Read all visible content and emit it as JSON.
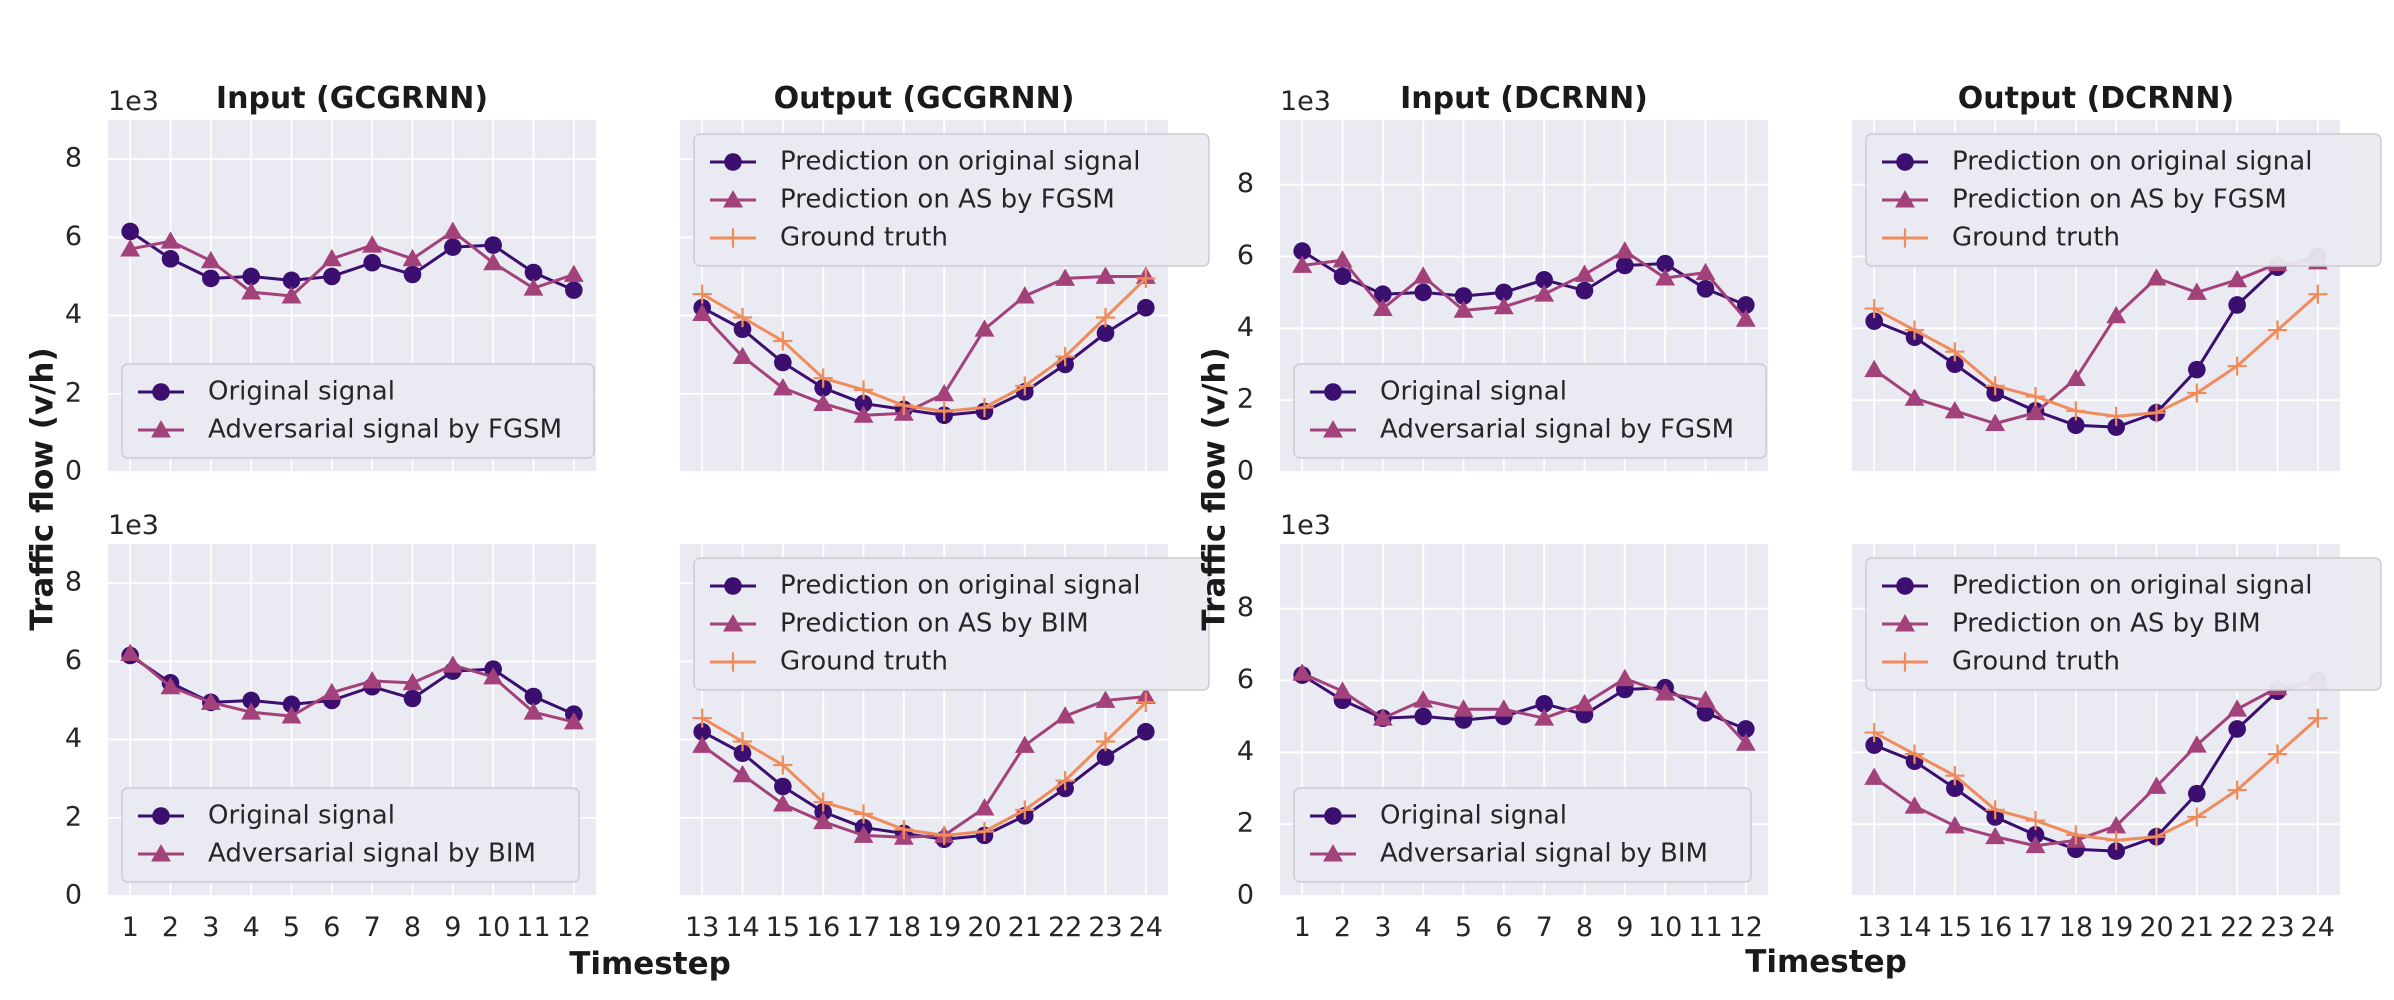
{
  "figure": {
    "ylabel_left": "Traffic flow (v/h)",
    "ylabel_right": "Traffic flow (v/h)",
    "xlabel_left": "Timestep",
    "xlabel_right": "Timestep",
    "colors": {
      "original": "#3b0f70",
      "adversarial": "#a3417a",
      "truth": "#f08c5c",
      "panel_bg": "#eaeaf2",
      "grid": "#ffffff"
    }
  },
  "chart_data": [
    {
      "type": "line",
      "title": "Input (GCGRNN)",
      "exponent_label": "1e3",
      "ylim": [
        0,
        9
      ],
      "yticks": [
        0,
        2,
        4,
        6,
        8
      ],
      "x": [
        1,
        2,
        3,
        4,
        5,
        6,
        7,
        8,
        9,
        10,
        11,
        12
      ],
      "legend": "lower-left",
      "series": [
        {
          "name": "Original signal",
          "marker": "circle",
          "color": "#3b0f70",
          "values": [
            6.15,
            5.45,
            4.95,
            5.0,
            4.9,
            5.0,
            5.35,
            5.05,
            5.75,
            5.8,
            5.1,
            4.65
          ]
        },
        {
          "name": "Adversarial signal by FGSM",
          "marker": "triangle",
          "color": "#a3417a",
          "values": [
            5.7,
            5.9,
            5.4,
            4.6,
            4.5,
            5.45,
            5.8,
            5.45,
            6.15,
            5.35,
            4.7,
            5.05
          ]
        }
      ]
    },
    {
      "type": "line",
      "title": "Output (GCGRNN)",
      "ylim": [
        0,
        9
      ],
      "yticks": [
        0,
        2,
        4,
        6,
        8
      ],
      "x": [
        13,
        14,
        15,
        16,
        17,
        18,
        19,
        20,
        21,
        22,
        23,
        24
      ],
      "legend": "upper-left",
      "series": [
        {
          "name": "Prediction on original signal",
          "marker": "circle",
          "color": "#3b0f70",
          "values": [
            4.2,
            3.65,
            2.8,
            2.15,
            1.75,
            1.6,
            1.45,
            1.55,
            2.05,
            2.75,
            3.55,
            4.2
          ]
        },
        {
          "name": "Prediction on AS by FGSM",
          "marker": "triangle",
          "color": "#a3417a",
          "values": [
            4.05,
            2.95,
            2.15,
            1.75,
            1.45,
            1.5,
            2.0,
            3.65,
            4.5,
            4.95,
            5.0,
            5.0
          ]
        },
        {
          "name": "Ground truth",
          "marker": "plus",
          "color": "#f08c5c",
          "values": [
            4.55,
            3.95,
            3.35,
            2.4,
            2.1,
            1.7,
            1.55,
            1.65,
            2.2,
            2.95,
            3.95,
            4.95
          ]
        }
      ]
    },
    {
      "type": "line",
      "title": "Input (DCRNN)",
      "exponent_label": "1e3",
      "ylim": [
        0,
        9.8
      ],
      "yticks": [
        0,
        2,
        4,
        6,
        8
      ],
      "x": [
        1,
        2,
        3,
        4,
        5,
        6,
        7,
        8,
        9,
        10,
        11,
        12
      ],
      "legend": "lower-left",
      "series": [
        {
          "name": "Original signal",
          "marker": "circle",
          "color": "#3b0f70",
          "values": [
            6.15,
            5.45,
            4.95,
            5.0,
            4.9,
            5.0,
            5.35,
            5.05,
            5.75,
            5.8,
            5.1,
            4.65
          ]
        },
        {
          "name": "Adversarial signal by FGSM",
          "marker": "triangle",
          "color": "#a3417a",
          "values": [
            5.75,
            5.9,
            4.55,
            5.45,
            4.5,
            4.6,
            4.95,
            5.5,
            6.15,
            5.4,
            5.55,
            4.25
          ]
        }
      ]
    },
    {
      "type": "line",
      "title": "Output (DCRNN)",
      "ylim": [
        0,
        9.8
      ],
      "yticks": [
        0,
        2,
        4,
        6,
        8
      ],
      "x": [
        13,
        14,
        15,
        16,
        17,
        18,
        19,
        20,
        21,
        22,
        23,
        24
      ],
      "legend": "upper-left",
      "series": [
        {
          "name": "Prediction on original signal",
          "marker": "circle",
          "color": "#3b0f70",
          "values": [
            4.2,
            3.75,
            3.0,
            2.2,
            1.7,
            1.3,
            1.25,
            1.65,
            2.85,
            4.65,
            5.7,
            6.0
          ]
        },
        {
          "name": "Prediction on AS by FGSM",
          "marker": "triangle",
          "color": "#a3417a",
          "values": [
            2.85,
            2.05,
            1.7,
            1.35,
            1.65,
            2.6,
            4.35,
            5.4,
            5.0,
            5.35,
            5.8,
            5.85
          ]
        },
        {
          "name": "Ground truth",
          "marker": "plus",
          "color": "#f08c5c",
          "values": [
            4.55,
            3.95,
            3.35,
            2.4,
            2.1,
            1.7,
            1.55,
            1.65,
            2.2,
            2.95,
            3.95,
            4.95
          ]
        }
      ]
    },
    {
      "type": "line",
      "title": "",
      "exponent_label": "1e3",
      "ylim": [
        0,
        9
      ],
      "yticks": [
        0,
        2,
        4,
        6,
        8
      ],
      "x": [
        1,
        2,
        3,
        4,
        5,
        6,
        7,
        8,
        9,
        10,
        11,
        12
      ],
      "xticks": [
        "1",
        "2",
        "3",
        "4",
        "5",
        "6",
        "7",
        "8",
        "9",
        "10",
        "11",
        "12"
      ],
      "legend": "lower-left",
      "series": [
        {
          "name": "Original signal",
          "marker": "circle",
          "color": "#3b0f70",
          "values": [
            6.15,
            5.45,
            4.95,
            5.0,
            4.9,
            5.0,
            5.35,
            5.05,
            5.75,
            5.8,
            5.1,
            4.65
          ]
        },
        {
          "name": "Adversarial signal by BIM",
          "marker": "triangle",
          "color": "#a3417a",
          "values": [
            6.2,
            5.35,
            4.95,
            4.7,
            4.6,
            5.2,
            5.5,
            5.45,
            5.9,
            5.6,
            4.7,
            4.45
          ]
        }
      ]
    },
    {
      "type": "line",
      "title": "",
      "ylim": [
        0,
        9
      ],
      "yticks": [
        0,
        2,
        4,
        6,
        8
      ],
      "x": [
        13,
        14,
        15,
        16,
        17,
        18,
        19,
        20,
        21,
        22,
        23,
        24
      ],
      "xticks": [
        "13",
        "14",
        "15",
        "16",
        "17",
        "18",
        "19",
        "20",
        "21",
        "22",
        "23",
        "24"
      ],
      "legend": "upper-left",
      "series": [
        {
          "name": "Prediction on original signal",
          "marker": "circle",
          "color": "#3b0f70",
          "values": [
            4.2,
            3.65,
            2.8,
            2.15,
            1.75,
            1.6,
            1.45,
            1.55,
            2.05,
            2.75,
            3.55,
            4.2
          ]
        },
        {
          "name": "Prediction on AS by BIM",
          "marker": "triangle",
          "color": "#a3417a",
          "values": [
            3.85,
            3.1,
            2.35,
            1.9,
            1.55,
            1.5,
            1.55,
            2.25,
            3.85,
            4.6,
            5.0,
            5.1
          ]
        },
        {
          "name": "Ground truth",
          "marker": "plus",
          "color": "#f08c5c",
          "values": [
            4.55,
            3.95,
            3.35,
            2.4,
            2.1,
            1.7,
            1.55,
            1.65,
            2.2,
            2.95,
            3.95,
            4.95
          ]
        }
      ]
    },
    {
      "type": "line",
      "title": "",
      "exponent_label": "1e3",
      "ylim": [
        0,
        9.8
      ],
      "yticks": [
        0,
        2,
        4,
        6,
        8
      ],
      "x": [
        1,
        2,
        3,
        4,
        5,
        6,
        7,
        8,
        9,
        10,
        11,
        12
      ],
      "xticks": [
        "1",
        "2",
        "3",
        "4",
        "5",
        "6",
        "7",
        "8",
        "9",
        "10",
        "11",
        "12"
      ],
      "legend": "lower-left",
      "series": [
        {
          "name": "Original signal",
          "marker": "circle",
          "color": "#3b0f70",
          "values": [
            6.15,
            5.45,
            4.95,
            5.0,
            4.9,
            5.0,
            5.35,
            5.05,
            5.75,
            5.8,
            5.1,
            4.65
          ]
        },
        {
          "name": "Adversarial signal by BIM",
          "marker": "triangle",
          "color": "#a3417a",
          "values": [
            6.2,
            5.7,
            4.95,
            5.45,
            5.2,
            5.2,
            4.95,
            5.35,
            6.05,
            5.65,
            5.45,
            4.25
          ]
        }
      ]
    },
    {
      "type": "line",
      "title": "",
      "ylim": [
        0,
        9.8
      ],
      "yticks": [
        0,
        2,
        4,
        6,
        8
      ],
      "x": [
        13,
        14,
        15,
        16,
        17,
        18,
        19,
        20,
        21,
        22,
        23,
        24
      ],
      "xticks": [
        "13",
        "14",
        "15",
        "16",
        "17",
        "18",
        "19",
        "20",
        "21",
        "22",
        "23",
        "24"
      ],
      "legend": "upper-left",
      "series": [
        {
          "name": "Prediction on original signal",
          "marker": "circle",
          "color": "#3b0f70",
          "values": [
            4.2,
            3.75,
            3.0,
            2.2,
            1.7,
            1.3,
            1.25,
            1.65,
            2.85,
            4.65,
            5.7,
            6.0
          ]
        },
        {
          "name": "Prediction on AS by BIM",
          "marker": "triangle",
          "color": "#a3417a",
          "values": [
            3.3,
            2.5,
            1.95,
            1.65,
            1.4,
            1.55,
            1.95,
            3.05,
            4.2,
            5.2,
            5.8,
            5.95
          ]
        },
        {
          "name": "Ground truth",
          "marker": "plus",
          "color": "#f08c5c",
          "values": [
            4.55,
            3.95,
            3.35,
            2.4,
            2.1,
            1.7,
            1.55,
            1.65,
            2.2,
            2.95,
            3.95,
            4.95
          ]
        }
      ]
    }
  ]
}
